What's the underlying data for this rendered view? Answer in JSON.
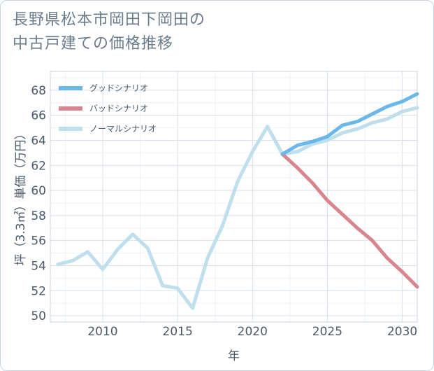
{
  "title": {
    "line1": "長野県松本市岡田下岡田の",
    "line2": "中古戸建ての価格推移"
  },
  "chart_data": {
    "type": "line",
    "title": "長野県松本市岡田下岡田の中古戸建ての価格推移",
    "xlabel": "年",
    "ylabel": "坪（3.3㎡）単価（万円）",
    "xlim": [
      2006.5,
      2031
    ],
    "ylim": [
      49.5,
      69.5
    ],
    "x_ticks": [
      2010,
      2015,
      2020,
      2025,
      2030
    ],
    "x_tick_labels": [
      "2010",
      "2015",
      "2020",
      "2025",
      "2030"
    ],
    "y_ticks": [
      50,
      52,
      54,
      56,
      58,
      60,
      62,
      64,
      66,
      68
    ],
    "y_tick_labels": [
      "50",
      "52",
      "54",
      "56",
      "58",
      "60",
      "62",
      "64",
      "66",
      "68"
    ],
    "grid": true,
    "legend_position": "top-left",
    "series": [
      {
        "name": "グッドシナリオ",
        "color": "#6ab8ea",
        "x": [
          2022,
          2023,
          2024,
          2025,
          2026,
          2027,
          2028,
          2029,
          2030,
          2031
        ],
        "values": [
          62.9,
          63.6,
          63.9,
          64.3,
          65.2,
          65.5,
          66.1,
          66.7,
          67.1,
          67.7
        ]
      },
      {
        "name": "バッドシナリオ",
        "color": "#d8868e",
        "x": [
          2022,
          2023,
          2024,
          2025,
          2026,
          2027,
          2028,
          2029,
          2030,
          2031
        ],
        "values": [
          62.9,
          61.8,
          60.6,
          59.2,
          58.1,
          57.0,
          56.0,
          54.6,
          53.5,
          52.3
        ]
      },
      {
        "name": "ノーマルシナリオ",
        "color": "#bfdfec",
        "x": [
          2007,
          2008,
          2009,
          2010,
          2011,
          2012,
          2013,
          2014,
          2015,
          2016,
          2017,
          2018,
          2019,
          2020,
          2021,
          2022,
          2023,
          2024,
          2025,
          2026,
          2027,
          2028,
          2029,
          2030,
          2031
        ],
        "values": [
          54.1,
          54.4,
          55.1,
          53.7,
          55.3,
          56.5,
          55.4,
          52.4,
          52.2,
          50.6,
          54.6,
          57.2,
          60.7,
          63.1,
          65.1,
          62.9,
          63.1,
          63.7,
          64.0,
          64.6,
          64.9,
          65.4,
          65.7,
          66.3,
          66.6
        ]
      }
    ]
  }
}
